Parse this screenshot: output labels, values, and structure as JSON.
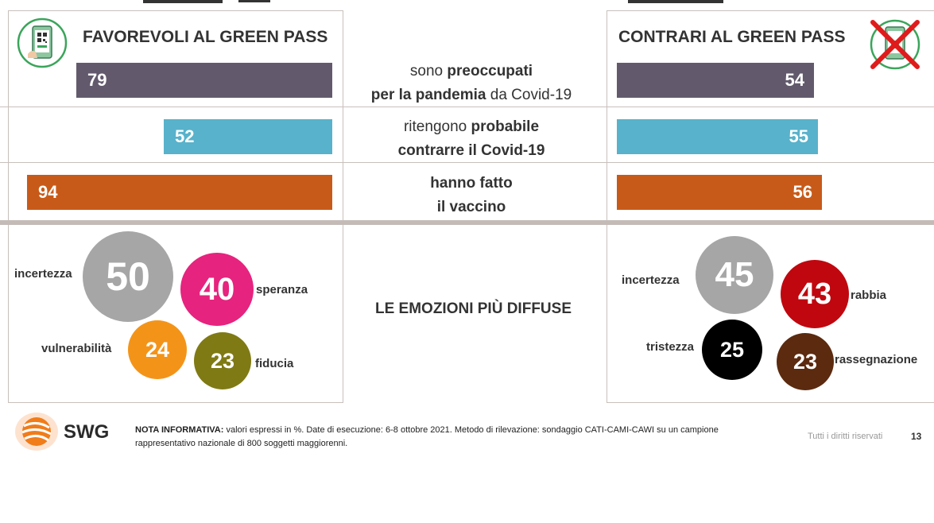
{
  "headers": {
    "left": "FAVOREVOLI AL GREEN PASS",
    "right": "CONTRARI AL GREEN PASS"
  },
  "rows": [
    {
      "line1_a": "sono ",
      "line1_b": "preoccupati",
      "line2_a": "per la pandemia",
      "line2_b": " da Covid-19"
    },
    {
      "line1_a": "ritengono ",
      "line1_b": "probabile",
      "line2_a": "contrarre il Covid-19",
      "line2_b": ""
    },
    {
      "line1_a": "",
      "line1_b": "hanno fatto",
      "line2_a": "il vaccino",
      "line2_b": ""
    }
  ],
  "emotions_title": "LE EMOZIONI PIÙ DIFFUSE",
  "chart_data": [
    {
      "type": "bar",
      "name": "",
      "categories": [
        "preoccupati per la pandemia da Covid-19",
        "ritengono probabile contrarre il Covid-19",
        "hanno fatto il vaccino"
      ],
      "series": [
        {
          "name": "FAVOREVOLI AL GREEN PASS",
          "values": [
            79,
            52,
            94
          ]
        },
        {
          "name": "CONTRARI AL GREEN PASS",
          "values": [
            54,
            55,
            56
          ]
        }
      ],
      "colors": [
        "#625a6c",
        "#58b2cb",
        "#c85a19"
      ],
      "unit": "%"
    },
    {
      "type": "bubble",
      "group": "FAVOREVOLI AL GREEN PASS",
      "items": [
        {
          "label": "incertezza",
          "value": 50,
          "color": "#a6a6a6"
        },
        {
          "label": "speranza",
          "value": 40,
          "color": "#e6237e"
        },
        {
          "label": "vulnerabilità",
          "value": 24,
          "color": "#f39419"
        },
        {
          "label": "fiducia",
          "value": 23,
          "color": "#7f7a14"
        }
      ]
    },
    {
      "type": "bubble",
      "group": "CONTRARI AL GREEN PASS",
      "items": [
        {
          "label": "incertezza",
          "value": 45,
          "color": "#a6a6a6"
        },
        {
          "label": "rabbia",
          "value": 43,
          "color": "#c0070f"
        },
        {
          "label": "tristezza",
          "value": 25,
          "color": "#000000"
        },
        {
          "label": "rassegnazione",
          "value": 23,
          "color": "#5b2a0f"
        }
      ]
    }
  ],
  "footer": {
    "logo_text": "SWG",
    "note_bold": "NOTA INFORMATIVA:",
    "note_line1": " valori espressi in %. Date di esecuzione: 6-8  ottobre 2021. Metodo di rilevazione: sondaggio CATI-CAMI-CAWI su un campione",
    "note_line2": "rappresentativo nazionale di 800 soggetti maggiorenni.",
    "rights": "Tutti i diritti riservati",
    "page": "13"
  }
}
